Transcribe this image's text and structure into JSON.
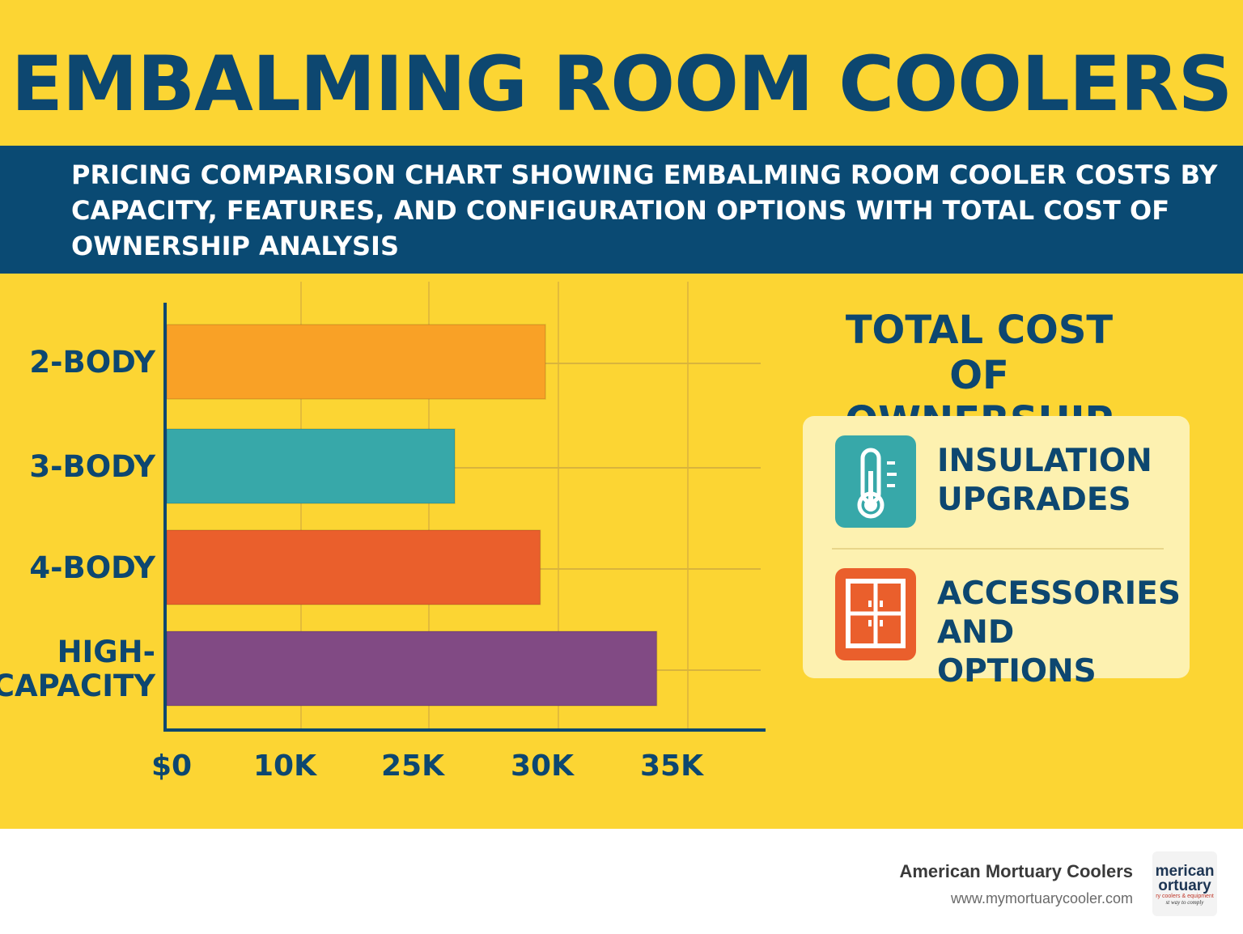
{
  "header": {
    "title": "EMBALMING ROOM COOLERS",
    "subtitle": "PRICING COMPARISON CHART SHOWING EMBALMING ROOM COOLER COSTS BY CAPACITY, FEATURES, AND CONFIGURATION OPTIONS WITH TOTAL COST OF OWNERSHIP ANALYSIS"
  },
  "chart_data": {
    "type": "bar",
    "orientation": "horizontal",
    "categories": [
      "2-BODY",
      "3-BODY",
      "4-BODY",
      "HIGH-\nCAPACITY"
    ],
    "x_tick_labels": [
      "$0",
      "10K",
      "25K",
      "30K",
      "35K"
    ],
    "values": [
      29500,
      26000,
      29300,
      33800
    ],
    "bar_colors": [
      "#f9a126",
      "#37a8a9",
      "#ea5f2c",
      "#814a84"
    ],
    "grid": true,
    "title": "",
    "xlabel": "",
    "ylabel": ""
  },
  "tco": {
    "title_line1": "TOTAL COST",
    "title_line2": "OF OWNERSHIP",
    "items": [
      {
        "label_line1": "INSULATION",
        "label_line2": "UPGRADES",
        "icon": "thermometer-icon",
        "icon_color": "#37a8a9"
      },
      {
        "label_line1": "ACCESSORIES",
        "label_line2": "AND OPTIONS",
        "icon": "cabinet-icon",
        "icon_color": "#ea5f2c"
      }
    ]
  },
  "footer": {
    "company": "American Mortuary Coolers",
    "url": "www.mymortuarycooler.com",
    "logo_line1": "merican",
    "logo_line2": "ortuary",
    "logo_small1": "ry coolers & equipment",
    "logo_small2": "st way to comply"
  },
  "colors": {
    "background": "#fcd533",
    "navy": "#0d4770",
    "band": "#0a4a73"
  }
}
